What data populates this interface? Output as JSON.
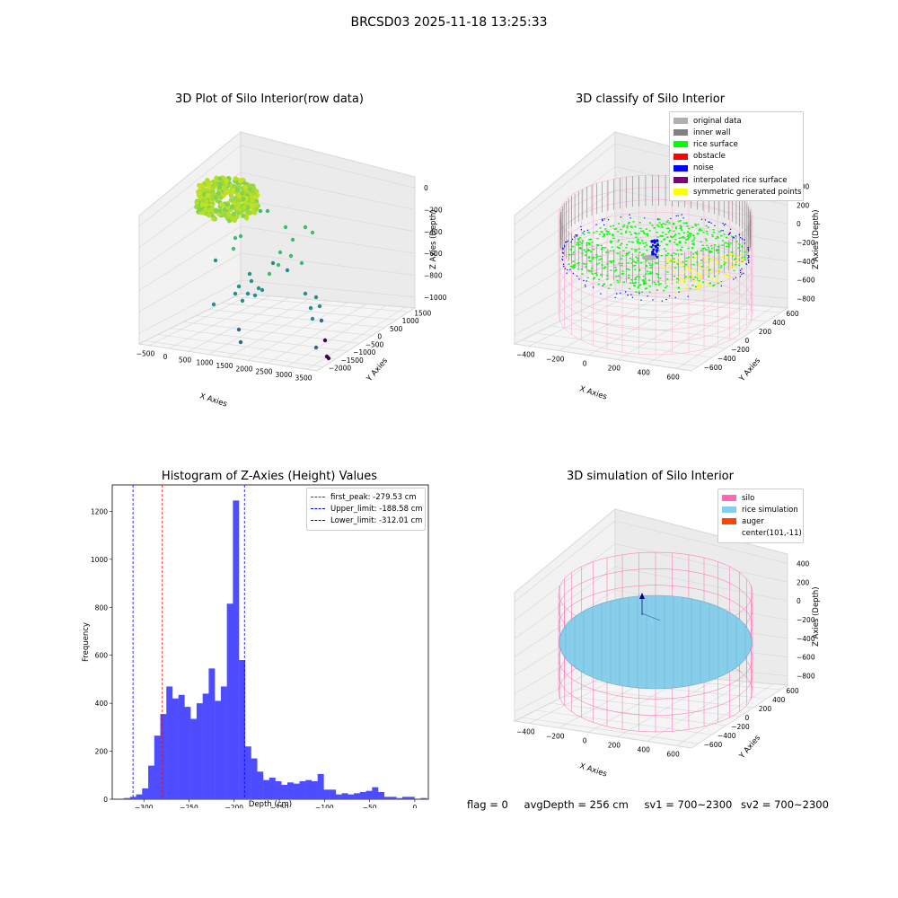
{
  "suptitle": "BRCSD03 2025-11-18 13:25:33",
  "panels": {
    "raw": {
      "title": "3D Plot of Silo Interior(row data)",
      "xlabel": "X Axies",
      "ylabel": "Y Axies",
      "zlabel": "Z Axies (Depth)",
      "xticks": [
        "−500",
        "0",
        "500",
        "1000",
        "1500",
        "2000",
        "2500",
        "3000",
        "3500"
      ],
      "yticks": [
        "1500",
        "1000",
        "500",
        "0",
        "−500",
        "−1000",
        "−1500",
        "−2000"
      ],
      "zticks": [
        "0",
        "−200",
        "−400",
        "−600",
        "−800",
        "−1000"
      ]
    },
    "classify": {
      "title": "3D classify of Silo Interior",
      "xlabel": "X Axies",
      "ylabel": "Y Axies",
      "zlabel": "Z Axies (Depth)",
      "xticks": [
        "−400",
        "−200",
        "0",
        "200",
        "400",
        "600"
      ],
      "yticks": [
        "600",
        "400",
        "200",
        "0",
        "−200",
        "−400",
        "−600"
      ],
      "zticks": [
        "400",
        "200",
        "0",
        "−200",
        "−400",
        "−600",
        "−800"
      ],
      "legend": [
        {
          "label": "original data",
          "color": "#b0b0b0"
        },
        {
          "label": "inner wall",
          "color": "#808080"
        },
        {
          "label": "rice surface",
          "color": "#00ff00"
        },
        {
          "label": "obstacle",
          "color": "#ff0000"
        },
        {
          "label": "noise",
          "color": "#0000ff"
        },
        {
          "label": "interpolated rice surface",
          "color": "#800080"
        },
        {
          "label": "symmetric generated points",
          "color": "#ffff00"
        }
      ]
    },
    "simulation": {
      "title": "3D simulation of Silo Interior",
      "xlabel": "X Axies",
      "ylabel": "Y Axies",
      "zlabel": "Z Axies (Depth)",
      "xticks": [
        "−400",
        "−200",
        "0",
        "200",
        "400",
        "600"
      ],
      "yticks": [
        "600",
        "400",
        "200",
        "0",
        "−200",
        "−400",
        "−600"
      ],
      "zticks": [
        "400",
        "200",
        "0",
        "−200",
        "−400",
        "−600",
        "−800"
      ],
      "legend": [
        {
          "label": "silo",
          "color": "#ff69b4"
        },
        {
          "label": "rice simulation",
          "color": "#87ceeb"
        },
        {
          "label": "auger",
          "color": "#ff4500"
        },
        {
          "label": "center(101,-11)",
          "color": ""
        }
      ]
    }
  },
  "chart_data": {
    "type": "bar",
    "title": "Histogram of Z-Axies (Height) Values",
    "xlabel": "Depth (cm)",
    "ylabel": "Frequency",
    "xlim": [
      -335,
      15
    ],
    "ylim": [
      0,
      1310
    ],
    "xticks": [
      -300,
      -250,
      -200,
      -150,
      -100,
      -50,
      0
    ],
    "yticks": [
      0,
      200,
      400,
      600,
      800,
      1000,
      1200
    ],
    "bin_start": -322,
    "bin_width": 6.7,
    "values": [
      5,
      10,
      20,
      45,
      140,
      265,
      355,
      470,
      420,
      435,
      385,
      335,
      400,
      440,
      545,
      410,
      470,
      815,
      1245,
      580,
      220,
      170,
      115,
      80,
      90,
      75,
      60,
      70,
      65,
      75,
      80,
      75,
      105,
      40,
      40,
      20,
      25,
      20,
      25,
      30,
      35,
      50,
      30,
      10,
      10,
      5,
      10,
      10,
      0,
      5
    ],
    "vlines": [
      {
        "label": "first_peak: -279.53 cm",
        "x": -279.53,
        "color": "#ff0000"
      },
      {
        "label": "Upper_limit: -188.58 cm",
        "x": -188.58,
        "color": "#0000ff"
      },
      {
        "label": "Lower_limit: -312.01 cm",
        "x": -312.01,
        "color": "#0000ff"
      }
    ],
    "bar_color": "#4d4dff"
  },
  "footer": {
    "flag": "flag = 0",
    "avg": "avgDepth = 256 cm",
    "sv1": "sv1 = 700~2300",
    "sv2": "sv2 = 700~2300"
  }
}
